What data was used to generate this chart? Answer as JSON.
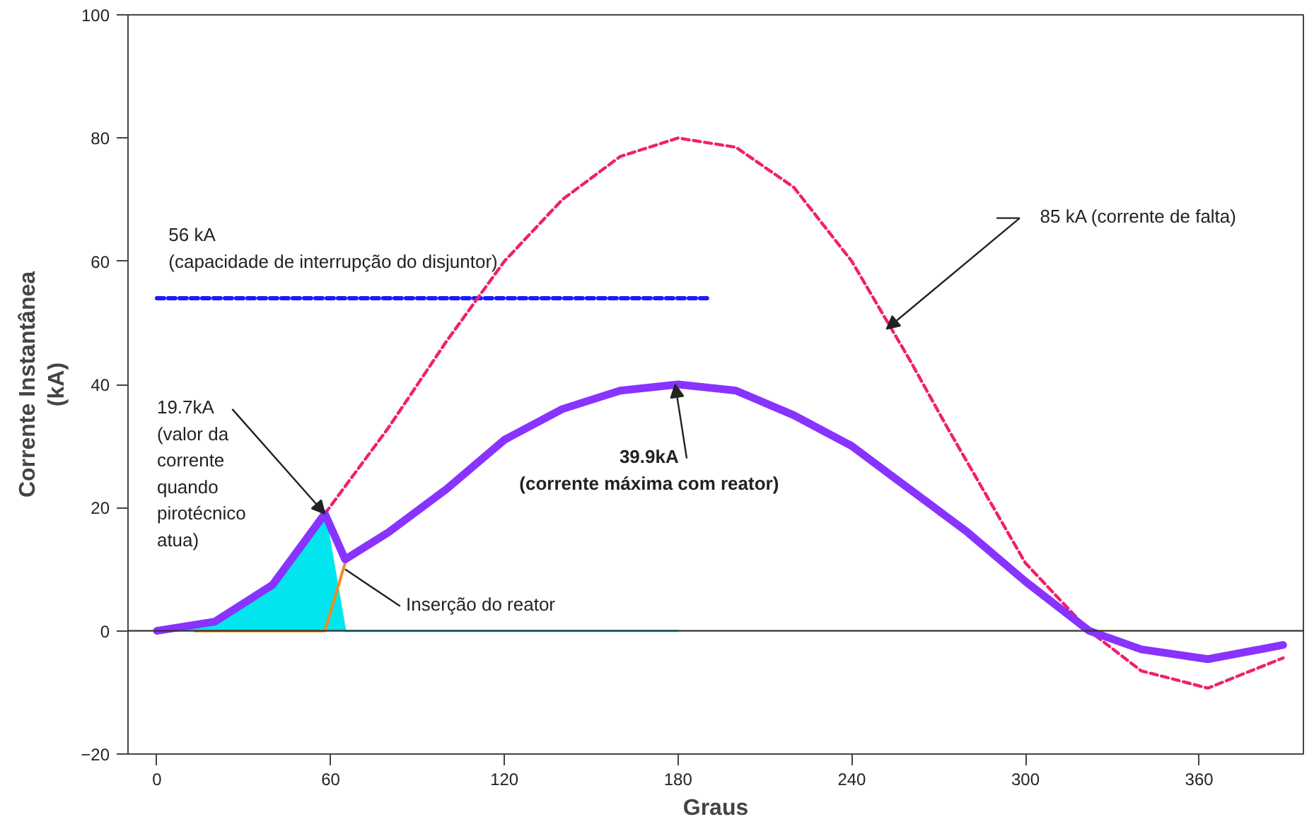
{
  "chart_data": {
    "type": "line",
    "xlabel": "Graus",
    "ylabel": "Corrente Instantânea\n(kA)",
    "xlim": [
      -10,
      396
    ],
    "ylim": [
      -20,
      100
    ],
    "xticks": [
      0,
      60,
      120,
      180,
      240,
      300,
      360
    ],
    "yticks": [
      -20,
      0,
      20,
      40,
      60,
      80,
      100
    ],
    "grid": false,
    "ref_lines": [
      {
        "axis": "y",
        "value": 0,
        "color": "#333333"
      }
    ],
    "series": [
      {
        "color": "#00e5ee",
        "type": "area",
        "x": [
          0,
          20,
          40,
          58,
          65,
          180
        ],
        "values": [
          0,
          1.5,
          7.5,
          19,
          0,
          0
        ]
      },
      {
        "color": "#1a1aff",
        "line_style": "dashed",
        "x": [
          0,
          190
        ],
        "values": [
          54,
          54
        ]
      },
      {
        "color": "#f0206e",
        "line_style": "dashed",
        "x": [
          58,
          80,
          100,
          120,
          140,
          160,
          180,
          200,
          220,
          240,
          260,
          273,
          300,
          322,
          340,
          363,
          389
        ],
        "values": [
          19,
          33,
          47,
          60,
          70,
          77,
          80,
          78.5,
          72,
          60,
          44,
          33,
          11,
          0,
          -6.5,
          -9.3,
          -4.4
        ]
      },
      {
        "color": "#f08c1e",
        "line_style": "solid",
        "x": [
          13,
          58,
          65
        ],
        "values": [
          0,
          0,
          11
        ]
      },
      {
        "color": "#8833ff",
        "line_style": "solid",
        "x": [
          0,
          20,
          40,
          58,
          65,
          80,
          100,
          120,
          140,
          160,
          180,
          200,
          220,
          240,
          260,
          280,
          300,
          322,
          340,
          363,
          389
        ],
        "values": [
          0,
          1.5,
          7.5,
          19,
          11.6,
          16,
          23,
          31,
          36,
          39,
          40,
          39,
          35,
          30,
          23,
          16,
          8,
          0,
          -3,
          -4.6,
          -2.3
        ]
      }
    ],
    "annotations": [
      "56 kA\n(capacidade de interrupção do disjuntor)",
      {
        "text": "19.7kA\n(valor da\ncorrente\nquando\npirotécnico\natua)",
        "x": 58,
        "y": 19
      },
      {
        "text": "85 kA  (corrente de falta)",
        "x": 252,
        "y": 49
      },
      {
        "text": "39.9kA\n(corrente máxima com reator)",
        "x": 179,
        "y": 40
      },
      {
        "text": "Inserção do reator",
        "x": 65,
        "y": 10
      }
    ]
  }
}
